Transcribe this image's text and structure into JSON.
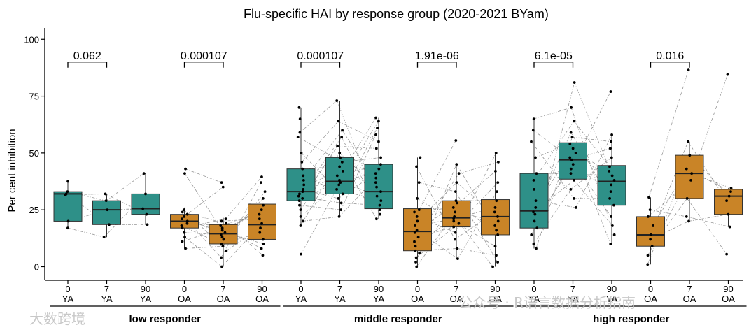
{
  "chart_data": {
    "type": "box",
    "title": "Flu-specific HAI by response group (2020-2021 BYam)",
    "ylabel": "Per cent inhibition",
    "ylim": [
      -6,
      105
    ],
    "yticks": [
      0,
      25,
      50,
      75,
      100
    ],
    "colors": {
      "YA": "#2e9088",
      "OA": "#c98427"
    },
    "groups": [
      {
        "label": "low responder",
        "pvalue": "0.062",
        "pvalue_y": 90,
        "boxes": [
          {
            "day": "0",
            "age": "YA",
            "whisker_low": 16.5,
            "q1": 20,
            "median": 32,
            "q3": 33,
            "whisker_high": 37.5,
            "points": [
              17,
              20,
              31.5,
              32,
              33,
              37.5
            ]
          },
          {
            "day": "7",
            "age": "YA",
            "whisker_low": 13,
            "q1": 18.5,
            "median": 25,
            "q3": 29,
            "whisker_high": 32,
            "points": [
              13,
              18.5,
              25,
              29,
              32
            ]
          },
          {
            "day": "90",
            "age": "YA",
            "whisker_low": 18.5,
            "q1": 23,
            "median": 25.5,
            "q3": 32,
            "whisker_high": 41,
            "points": [
              18.5,
              23,
              25.5,
              32,
              41
            ]
          }
        ]
      },
      {
        "label": "",
        "pvalue": "0.000107",
        "pvalue_y": 90,
        "boxes": [
          {
            "day": "0",
            "age": "OA",
            "whisker_low": 8,
            "q1": 17,
            "median": 20,
            "q3": 23,
            "whisker_high": 26,
            "points": [
              8,
              11,
              13,
              15,
              17,
              18,
              19,
              20,
              21,
              22,
              23,
              24,
              25,
              41,
              43
            ]
          },
          {
            "day": "7",
            "age": "OA",
            "whisker_low": 0,
            "q1": 10,
            "median": 14.5,
            "q3": 18.5,
            "whisker_high": 21.5,
            "points": [
              0,
              4,
              7,
              9,
              10,
              12,
              13,
              14,
              15,
              16,
              17,
              18,
              19,
              20,
              21,
              35,
              37
            ]
          },
          {
            "day": "90",
            "age": "OA",
            "whisker_low": 5,
            "q1": 12,
            "median": 18.5,
            "q3": 27.5,
            "whisker_high": 39.5,
            "points": [
              5,
              8,
              10,
              12,
              15,
              17,
              19,
              21,
              23,
              25,
              27,
              30,
              33,
              37,
              39.5
            ]
          }
        ]
      },
      {
        "label": "middle responder",
        "pvalue": "0.000107",
        "pvalue_y": 90,
        "boxes": [
          {
            "day": "0",
            "age": "YA",
            "whisker_low": 18,
            "q1": 29,
            "median": 33,
            "q3": 43,
            "whisker_high": 70,
            "points": [
              5.5,
              18,
              20,
              22,
              25,
              27,
              29,
              30,
              31,
              32,
              33,
              34,
              36,
              38,
              40,
              43,
              46,
              50,
              57,
              59,
              65,
              70
            ]
          },
          {
            "day": "7",
            "age": "YA",
            "whisker_low": 22,
            "q1": 32,
            "median": 37.5,
            "q3": 48,
            "whisker_high": 73,
            "points": [
              22,
              25,
              28,
              30,
              32,
              34,
              36,
              37,
              38,
              40,
              42,
              44,
              46,
              48,
              50,
              53,
              57,
              60,
              64,
              73
            ]
          },
          {
            "day": "90",
            "age": "YA",
            "whisker_low": 21,
            "q1": 25.5,
            "median": 33,
            "q3": 45,
            "whisker_high": 65.5,
            "points": [
              21,
              23,
              25,
              27,
              29,
              31,
              33,
              35,
              37,
              39,
              41,
              43,
              45,
              48,
              52,
              55,
              58,
              61,
              64,
              65.5
            ]
          }
        ]
      },
      {
        "label": "",
        "pvalue": "1.91e-06",
        "pvalue_y": 90,
        "boxes": [
          {
            "day": "0",
            "age": "OA",
            "whisker_low": 0,
            "q1": 7,
            "median": 15.5,
            "q3": 25.5,
            "whisker_high": 48,
            "points": [
              0,
              2,
              4,
              6,
              7,
              9,
              11,
              13,
              15,
              16,
              18,
              20,
              22,
              24,
              25,
              30,
              37,
              44,
              48
            ]
          },
          {
            "day": "7",
            "age": "OA",
            "whisker_low": 3.5,
            "q1": 17.5,
            "median": 21.5,
            "q3": 29,
            "whisker_high": 45,
            "points": [
              3.5,
              8,
              12,
              15,
              17.5,
              19,
              20,
              21,
              22,
              24,
              26,
              28,
              29,
              33,
              37,
              41,
              45,
              55.5
            ]
          },
          {
            "day": "90",
            "age": "OA",
            "whisker_low": 0,
            "q1": 14,
            "median": 22,
            "q3": 29.5,
            "whisker_high": 50,
            "points": [
              0,
              2,
              5,
              9,
              14,
              16,
              18,
              20,
              22,
              24,
              26,
              29,
              33,
              37,
              42,
              46,
              50
            ]
          }
        ]
      },
      {
        "label": "high responder",
        "pvalue": "6.1e-05",
        "pvalue_y": 90,
        "boxes": [
          {
            "day": "0",
            "age": "YA",
            "whisker_low": 8,
            "q1": 17,
            "median": 24.5,
            "q3": 41,
            "whisker_high": 65,
            "points": [
              8,
              10,
              14,
              17,
              20,
              23,
              24,
              26,
              29,
              34,
              38,
              41,
              48,
              55,
              60,
              65
            ]
          },
          {
            "day": "7",
            "age": "YA",
            "whisker_low": 26,
            "q1": 38.5,
            "median": 47,
            "q3": 54.5,
            "whisker_high": 70,
            "points": [
              26,
              30,
              34,
              38,
              41,
              43,
              45,
              47,
              48,
              50,
              52,
              54,
              57,
              59,
              64,
              70,
              81
            ]
          },
          {
            "day": "90",
            "age": "YA",
            "whisker_low": 10,
            "q1": 27,
            "median": 37.5,
            "q3": 44.5,
            "whisker_high": 58,
            "points": [
              10,
              14,
              18,
              22,
              27,
              30,
              33,
              36,
              38,
              40,
              42,
              44,
              48,
              52,
              55,
              58,
              77
            ]
          }
        ]
      },
      {
        "label": "",
        "pvalue": "0.016",
        "pvalue_y": 90,
        "boxes": [
          {
            "day": "0",
            "age": "OA",
            "whisker_low": 1,
            "q1": 9,
            "median": 14,
            "q3": 22,
            "whisker_high": 30.5,
            "points": [
              1,
              5,
              9,
              12,
              14,
              18,
              22,
              25,
              30.5
            ]
          },
          {
            "day": "7",
            "age": "OA",
            "whisker_low": 20,
            "q1": 30,
            "median": 41,
            "q3": 49,
            "whisker_high": 55,
            "points": [
              20,
              22,
              30,
              38,
              41,
              43,
              49,
              55,
              86.5
            ]
          },
          {
            "day": "90",
            "age": "OA",
            "whisker_low": 17.5,
            "q1": 23,
            "median": 31,
            "q3": 34,
            "whisker_high": 34.5,
            "points": [
              5.5,
              17.5,
              23,
              29,
              31,
              33,
              34.5,
              84.5
            ]
          }
        ]
      }
    ],
    "group_labels": [
      "low responder",
      "middle responder",
      "high responder"
    ]
  },
  "watermarks": {
    "left": "大数跨境",
    "right": "公众号 · R语言数据分析指南"
  }
}
